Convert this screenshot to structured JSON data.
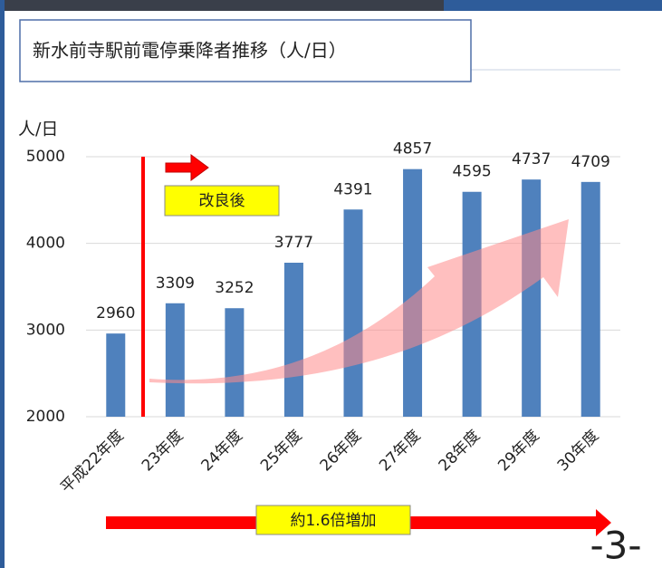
{
  "chart_data": {
    "type": "bar",
    "title": "新水前寺駅前電停乗降者推移（人/日）",
    "y_label": "人/日",
    "categories": [
      "平成22年度",
      "23年度",
      "24年度",
      "25年度",
      "26年度",
      "27年度",
      "28年度",
      "29年度",
      "30年度"
    ],
    "values": [
      2960,
      3309,
      3252,
      3777,
      4391,
      4857,
      4595,
      4737,
      4709
    ],
    "color": "#4f81bd",
    "ylim": [
      2000,
      5000
    ],
    "yticks": [
      2000,
      3000,
      4000,
      5000
    ],
    "grid": true,
    "annotations": [
      "改良後",
      "約1.6倍増加"
    ],
    "page_number": "-3-"
  }
}
